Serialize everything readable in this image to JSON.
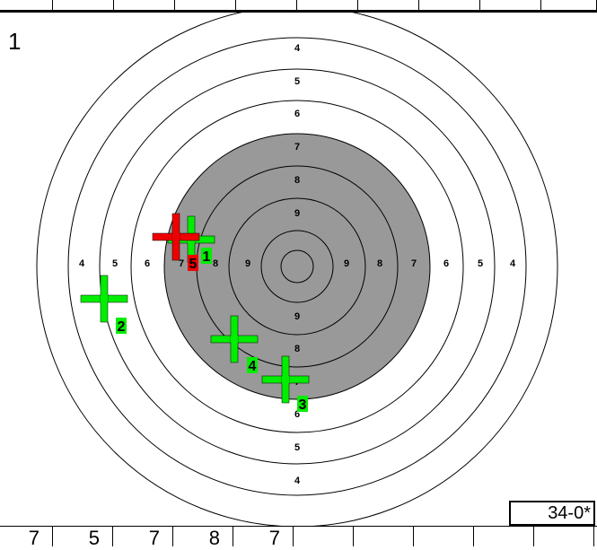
{
  "target": {
    "number": "1",
    "ring_label_rows": [
      [
        "4"
      ],
      [
        "5"
      ],
      [
        "6"
      ],
      [
        "7"
      ],
      [
        "8"
      ],
      [
        "9"
      ]
    ],
    "ring_labels_left": [
      "4",
      "5",
      "6",
      "7",
      "8",
      "9"
    ],
    "ring_labels_right": [
      "9",
      "8",
      "7",
      "6",
      "5",
      "4"
    ],
    "ring_labels_bottom": [
      "9",
      "8",
      "7",
      "6",
      "5",
      "4"
    ],
    "colors": {
      "black_zone": "#999999",
      "hit": "#00ee00",
      "last_hit": "#ee0000",
      "line": "#000000"
    }
  },
  "shots": [
    {
      "number": "1",
      "type": "hit"
    },
    {
      "number": "2",
      "type": "hit"
    },
    {
      "number": "3",
      "type": "hit"
    },
    {
      "number": "4",
      "type": "hit"
    },
    {
      "number": "5",
      "type": "last"
    }
  ],
  "total": {
    "label": "34-0*"
  },
  "shot_scores": [
    "7",
    "5",
    "7",
    "8",
    "7",
    "",
    "",
    "",
    "",
    ""
  ]
}
